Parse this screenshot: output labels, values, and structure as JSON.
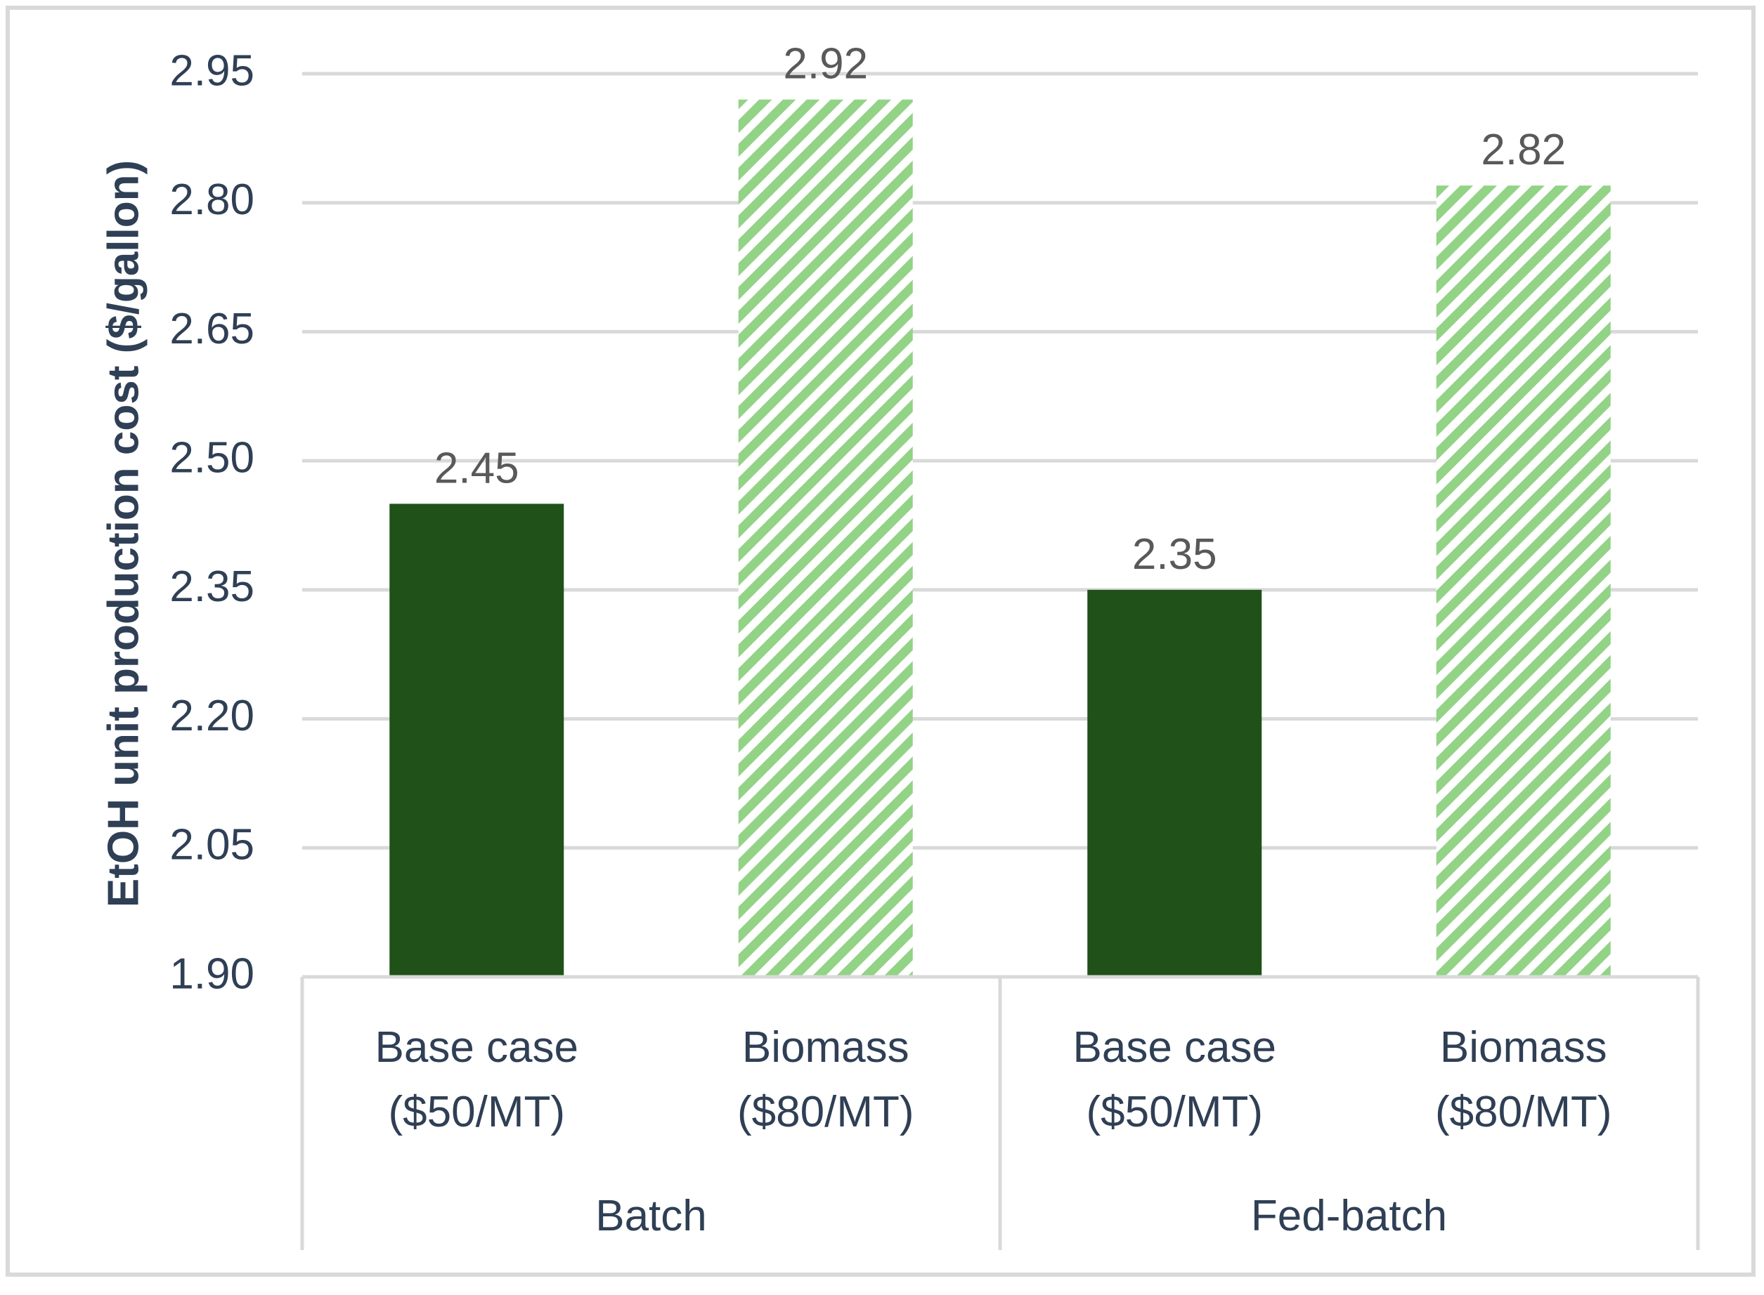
{
  "chart_data": {
    "type": "bar",
    "title": "",
    "xlabel": "",
    "ylabel": "EtOH unit production cost ($/gallon)",
    "ylim": [
      1.9,
      2.95
    ],
    "yticks": [
      "1.90",
      "2.05",
      "2.20",
      "2.35",
      "2.50",
      "2.65",
      "2.80",
      "2.95"
    ],
    "grid": true,
    "groups": [
      {
        "label": "Batch",
        "bars": [
          {
            "label_line1": "Base case",
            "label_line2": "($50/MT)",
            "value": 2.45,
            "value_label": "2.45",
            "style": "solid"
          },
          {
            "label_line1": "Biomass",
            "label_line2": "($80/MT)",
            "value": 2.92,
            "value_label": "2.92",
            "style": "hatched"
          }
        ]
      },
      {
        "label": "Fed-batch",
        "bars": [
          {
            "label_line1": "Base case",
            "label_line2": "($50/MT)",
            "value": 2.35,
            "value_label": "2.35",
            "style": "solid"
          },
          {
            "label_line1": "Biomass",
            "label_line2": "($80/MT)",
            "value": 2.82,
            "value_label": "2.82",
            "style": "hatched"
          }
        ]
      }
    ],
    "colors": {
      "solid": "#1f5119",
      "hatch": "#92d386",
      "grid": "#d9d9d9",
      "text": "#2f3f55",
      "data_label": "#595959"
    }
  }
}
